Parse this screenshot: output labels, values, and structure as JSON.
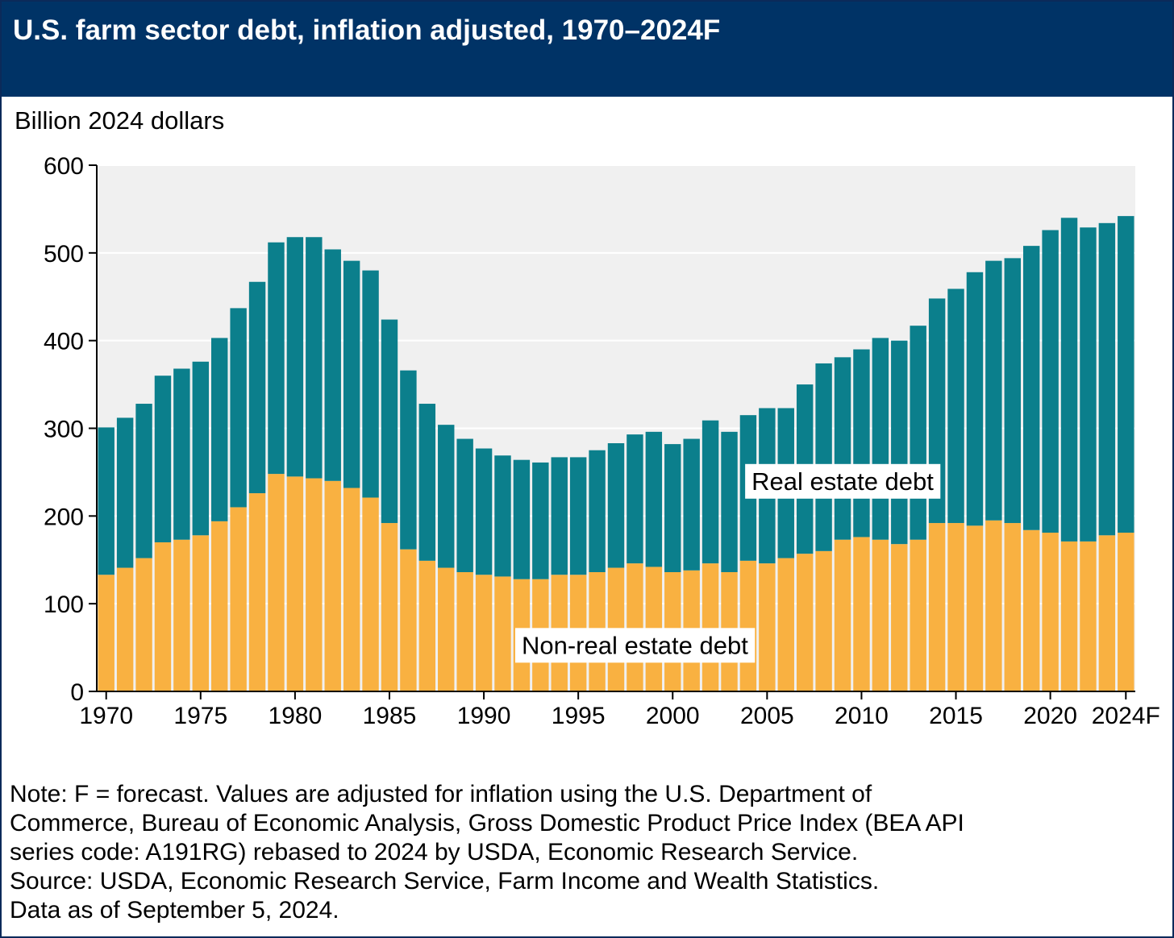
{
  "header": {
    "title": "U.S. farm sector debt, inflation adjusted, 1970–2024F"
  },
  "note": {
    "lines": [
      "Note: F = forecast. Values are adjusted for inflation using the U.S. Department of",
      "Commerce, Bureau of Economic Analysis, Gross Domestic Product Price Index (BEA API",
      "series code: A191RG) rebased to 2024 by USDA, Economic Research Service.",
      "Source: USDA, Economic Research Service, Farm Income and Wealth Statistics.",
      "Data as of September 5, 2024."
    ]
  },
  "colors": {
    "header_bg": "#003366",
    "plot_bg": "#f0f0f0",
    "non_real_estate": "#f9b141",
    "real_estate": "#0b7f8c"
  },
  "chart_data": {
    "type": "bar",
    "stacked": true,
    "ylabel": "Billion 2024 dollars",
    "ylim": [
      0,
      600
    ],
    "yticks": [
      0,
      100,
      200,
      300,
      400,
      500,
      600
    ],
    "grid": true,
    "x_tick_labels": [
      "1970",
      "1975",
      "1980",
      "1985",
      "1990",
      "1995",
      "2000",
      "2005",
      "2010",
      "2015",
      "2020",
      "2024F"
    ],
    "categories": [
      "1970",
      "1971",
      "1972",
      "1973",
      "1974",
      "1975",
      "1976",
      "1977",
      "1978",
      "1979",
      "1980",
      "1981",
      "1982",
      "1983",
      "1984",
      "1985",
      "1986",
      "1987",
      "1988",
      "1989",
      "1990",
      "1991",
      "1992",
      "1993",
      "1994",
      "1995",
      "1996",
      "1997",
      "1998",
      "1999",
      "2000",
      "2001",
      "2002",
      "2003",
      "2004",
      "2005",
      "2006",
      "2007",
      "2008",
      "2009",
      "2010",
      "2011",
      "2012",
      "2013",
      "2014",
      "2015",
      "2016",
      "2017",
      "2018",
      "2019",
      "2020",
      "2021",
      "2022",
      "2023",
      "2024F"
    ],
    "series": [
      {
        "name": "Non-real estate debt",
        "values": [
          133,
          141,
          152,
          170,
          173,
          178,
          194,
          210,
          226,
          248,
          245,
          243,
          240,
          232,
          221,
          192,
          162,
          149,
          141,
          136,
          133,
          131,
          128,
          128,
          133,
          133,
          136,
          141,
          146,
          142,
          136,
          138,
          146,
          136,
          149,
          146,
          152,
          157,
          160,
          173,
          176,
          173,
          168,
          173,
          192,
          192,
          189,
          195,
          192,
          184,
          181,
          171,
          171,
          178,
          181
        ]
      },
      {
        "name": "Real estate debt",
        "values": [
          168,
          171,
          176,
          190,
          195,
          198,
          209,
          227,
          241,
          264,
          273,
          275,
          264,
          259,
          259,
          232,
          204,
          179,
          163,
          152,
          144,
          138,
          136,
          133,
          134,
          134,
          139,
          142,
          147,
          154,
          146,
          150,
          163,
          160,
          166,
          177,
          171,
          193,
          214,
          208,
          214,
          230,
          232,
          244,
          256,
          267,
          289,
          296,
          302,
          324,
          345,
          369,
          358,
          356,
          361
        ]
      }
    ],
    "annotations": [
      {
        "text": "Real estate debt",
        "x": "2009",
        "y": 240
      },
      {
        "text": "Non-real estate debt",
        "x": "1998",
        "y": 53
      }
    ]
  }
}
